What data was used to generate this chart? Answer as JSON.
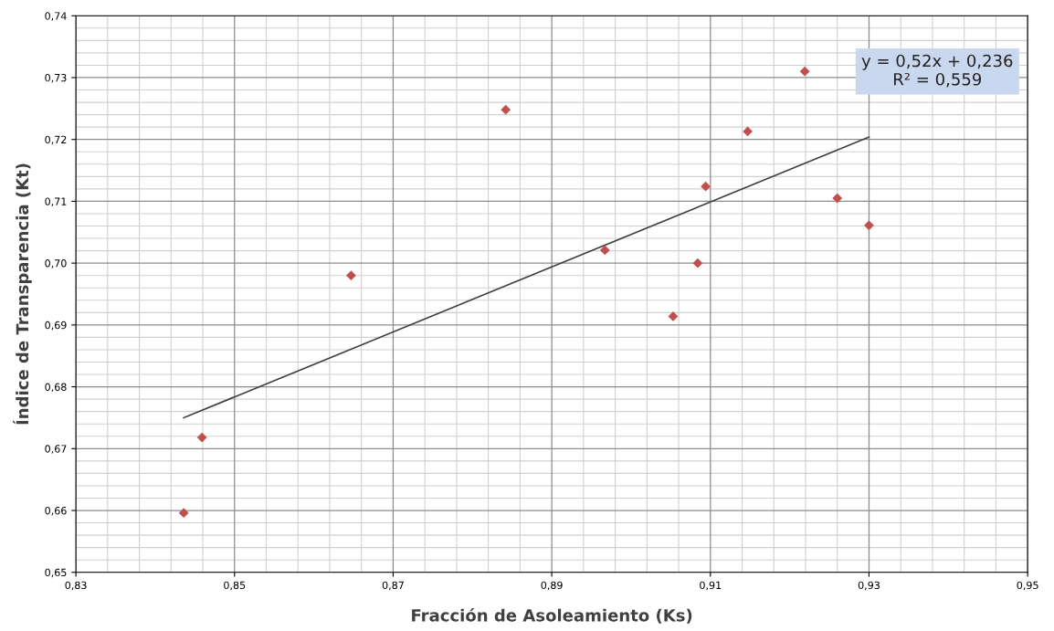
{
  "chart_data": {
    "type": "scatter",
    "xlabel": "Fracción de Asoleamiento (Ks)",
    "ylabel": "Índice de Transparencia (Kt)",
    "series": [
      {
        "color": "#c0504d",
        "marker": "diamond",
        "x": [
          0.8436,
          0.8459,
          0.8647,
          0.8842,
          0.8967,
          0.9053,
          0.9084,
          0.9094,
          0.9147,
          0.9219,
          0.926,
          0.93
        ],
        "values": [
          0.6596,
          0.6718,
          0.698,
          0.7248,
          0.7021,
          0.6914,
          0.7,
          0.7124,
          0.7213,
          0.731,
          0.7105,
          0.7061
        ]
      },
      {
        "type": "line",
        "color": "#404040",
        "marker": "none",
        "line_style": "solid",
        "x": [
          0.8436,
          0.93
        ],
        "values": [
          0.675,
          0.7204
        ]
      }
    ],
    "annotations": [
      "y = 0,52x + 0,236\nR² = 0,559"
    ],
    "xlim": [
      0.83,
      0.95
    ],
    "ylim": [
      0.65,
      0.74
    ],
    "xticks": [
      {
        "value": 0.83,
        "label": "0,83"
      },
      {
        "value": 0.85,
        "label": "0,85"
      },
      {
        "value": 0.87,
        "label": "0,87"
      },
      {
        "value": 0.89,
        "label": "0,89"
      },
      {
        "value": 0.91,
        "label": "0,91"
      },
      {
        "value": 0.93,
        "label": "0,93"
      },
      {
        "value": 0.95,
        "label": "0,95"
      }
    ],
    "yticks": [
      {
        "value": 0.65,
        "label": "0,65"
      },
      {
        "value": 0.66,
        "label": "0,66"
      },
      {
        "value": 0.67,
        "label": "0,67"
      },
      {
        "value": 0.68,
        "label": "0,68"
      },
      {
        "value": 0.69,
        "label": "0,69"
      },
      {
        "value": 0.7,
        "label": "0,70"
      },
      {
        "value": 0.71,
        "label": "0,71"
      },
      {
        "value": 0.72,
        "label": "0,72"
      },
      {
        "value": 0.73,
        "label": "0,73"
      },
      {
        "value": 0.74,
        "label": "0,74"
      }
    ],
    "grid": true,
    "legend": false
  }
}
